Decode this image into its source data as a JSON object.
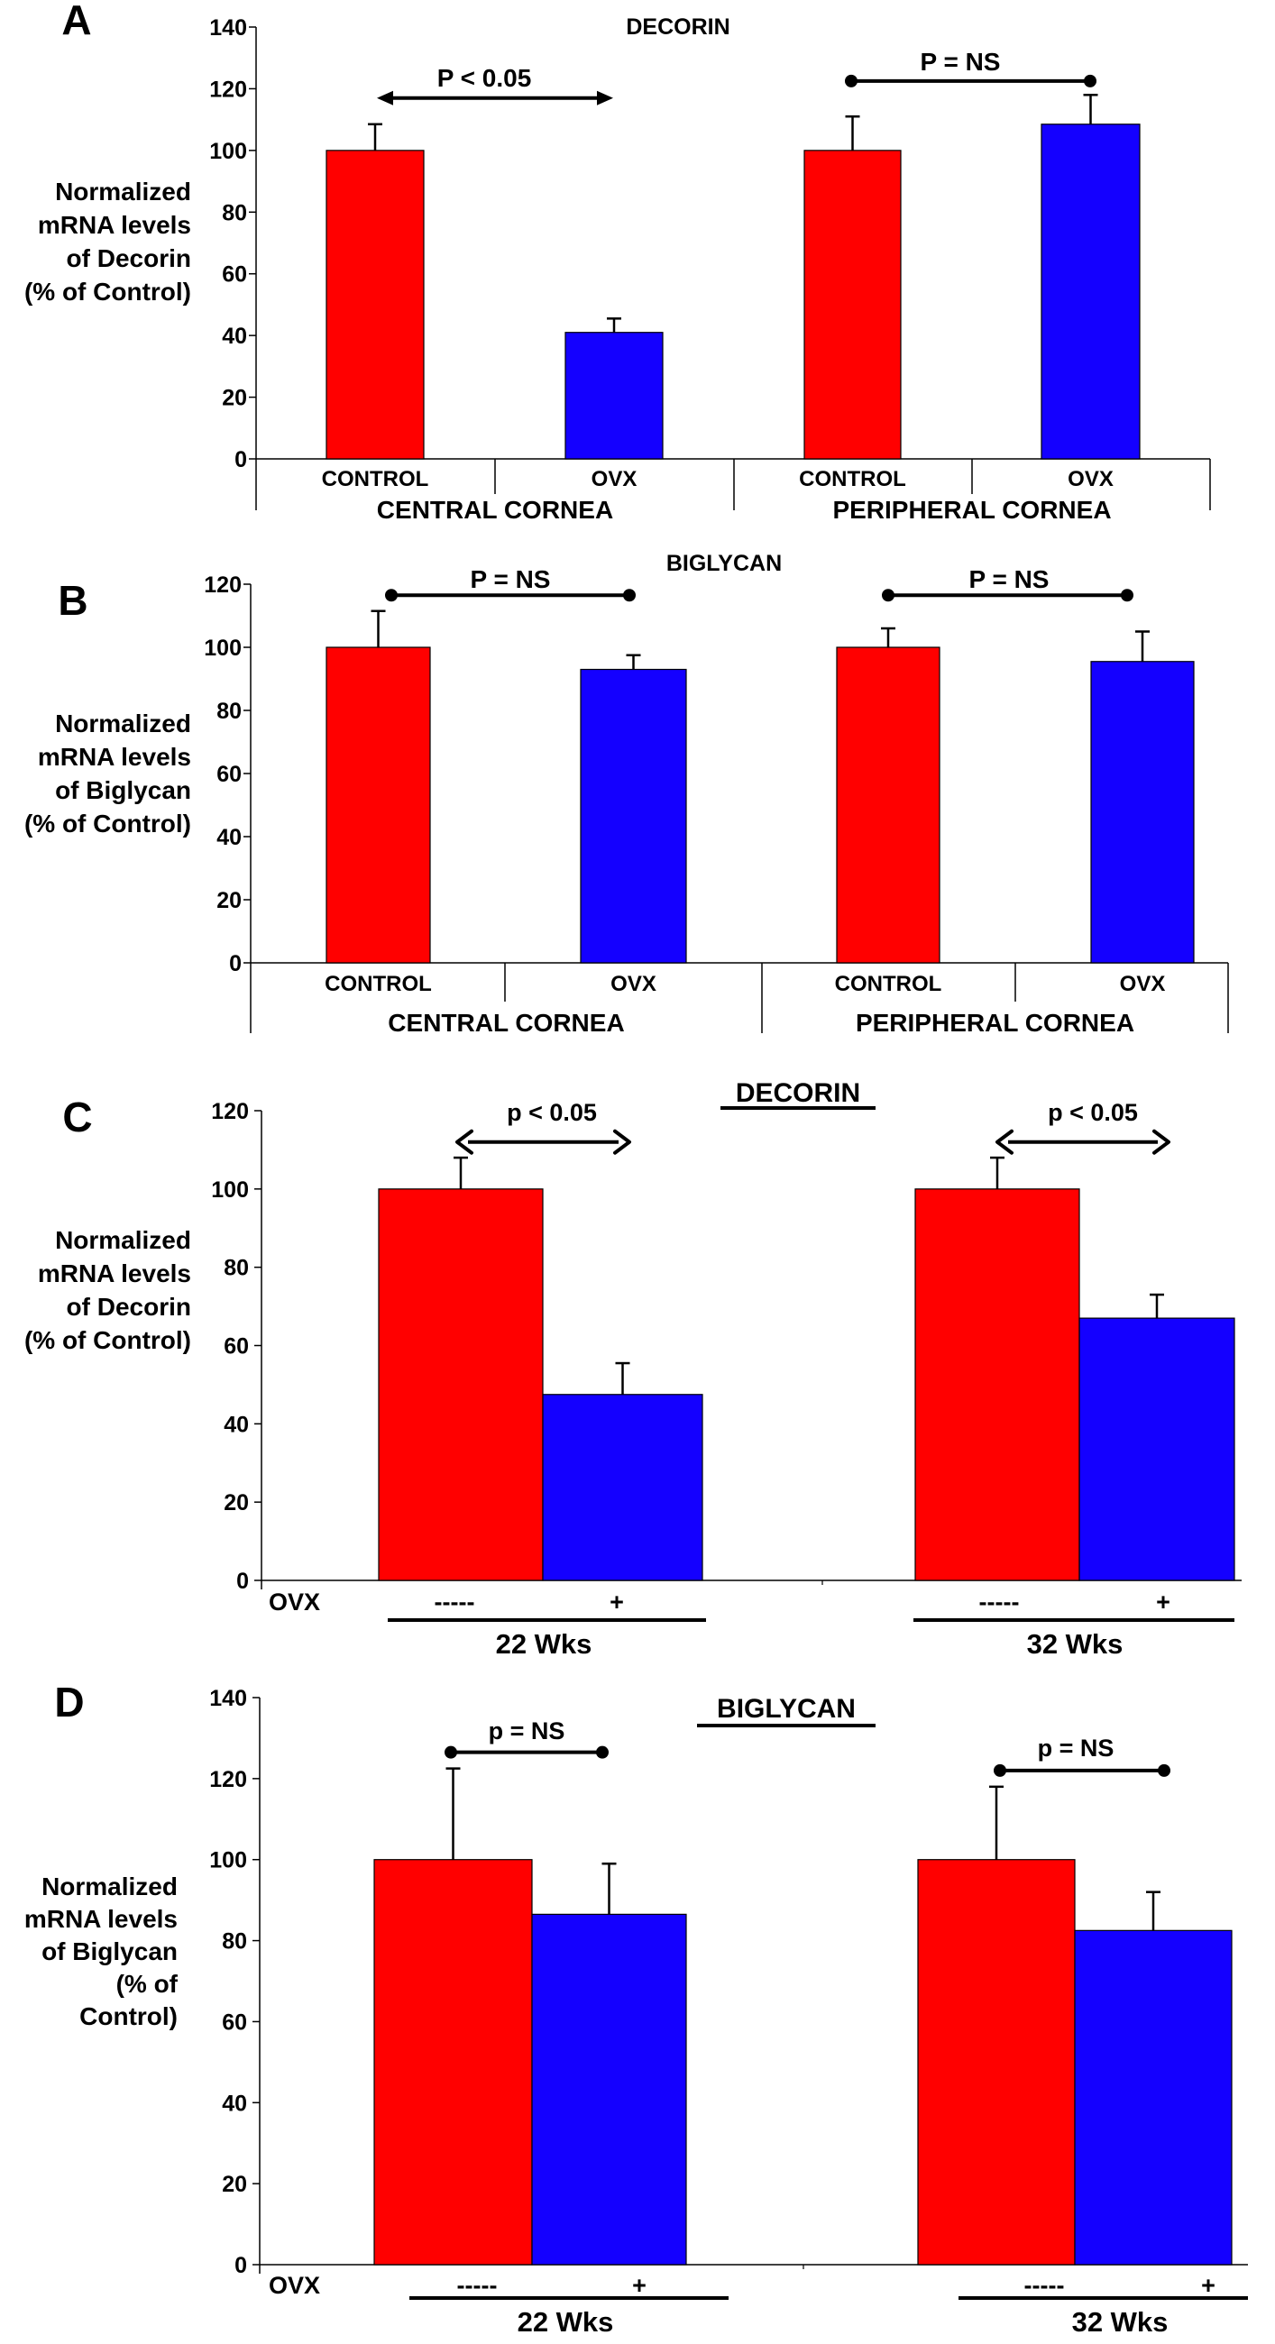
{
  "figure": {
    "colors": {
      "control": "#FF0000",
      "ovx": "#1400FF",
      "axis": "#000000"
    }
  },
  "chart_data": [
    {
      "panel": "A",
      "type": "bar",
      "title": "DECORIN",
      "title_underlined": false,
      "ylabel_lines": [
        "Normalized",
        "mRNA levels",
        "of Decorin",
        "(% of Control)"
      ],
      "ylim": [
        0,
        140
      ],
      "yticks": [
        0,
        20,
        40,
        60,
        80,
        100,
        120,
        140
      ],
      "grid": false,
      "groups": [
        {
          "label": "CENTRAL CORNEA",
          "bars": [
            {
              "category": "CONTROL",
              "series": "Control",
              "value": 100,
              "error": 8.5
            },
            {
              "category": "OVX",
              "series": "OVX",
              "value": 41,
              "error": 4.5
            }
          ],
          "significance": {
            "label": "P < 0.05",
            "style": "arrow",
            "y": 117
          }
        },
        {
          "label": "PERIPHERAL CORNEA",
          "bars": [
            {
              "category": "CONTROL",
              "series": "Control",
              "value": 100,
              "error": 11
            },
            {
              "category": "OVX",
              "series": "OVX",
              "value": 108.5,
              "error": 9.5
            }
          ],
          "significance": {
            "label": "P = NS",
            "style": "dots",
            "y": 122.5
          }
        }
      ]
    },
    {
      "panel": "B",
      "type": "bar",
      "title": "BIGLYCAN",
      "title_underlined": false,
      "ylabel_lines": [
        "Normalized",
        "mRNA levels",
        "of Biglycan",
        "(% of Control)"
      ],
      "ylim": [
        0,
        120
      ],
      "yticks": [
        0,
        20,
        40,
        60,
        80,
        100,
        120
      ],
      "grid": false,
      "groups": [
        {
          "label": "CENTRAL CORNEA",
          "bars": [
            {
              "category": "CONTROL",
              "series": "Control",
              "value": 100,
              "error": 11.5
            },
            {
              "category": "OVX",
              "series": "OVX",
              "value": 93,
              "error": 4.5
            }
          ],
          "significance": {
            "label": "P = NS",
            "style": "dots",
            "y": 116.5
          }
        },
        {
          "label": "PERIPHERAL CORNEA",
          "bars": [
            {
              "category": "CONTROL",
              "series": "Control",
              "value": 100,
              "error": 6
            },
            {
              "category": "OVX",
              "series": "OVX",
              "value": 95.5,
              "error": 9.5
            }
          ],
          "significance": {
            "label": "P = NS",
            "style": "dots",
            "y": 116.5
          }
        }
      ]
    },
    {
      "panel": "C",
      "type": "bar",
      "title": "DECORIN",
      "title_underlined": true,
      "ylabel_lines": [
        "Normalized",
        "mRNA levels",
        "of Decorin",
        "(% of Control)"
      ],
      "ylim": [
        0,
        120
      ],
      "yticks": [
        0,
        20,
        40,
        60,
        80,
        100,
        120
      ],
      "grid": false,
      "row_label": "OVX",
      "groups": [
        {
          "label": "22 Wks",
          "bars": [
            {
              "category": "-----",
              "series": "Control",
              "value": 100,
              "error": 8
            },
            {
              "category": "+",
              "series": "OVX",
              "value": 47.5,
              "error": 8
            }
          ],
          "significance": {
            "label": "p < 0.05",
            "style": "arrow",
            "y": 112
          }
        },
        {
          "label": "32 Wks",
          "bars": [
            {
              "category": "-----",
              "series": "Control",
              "value": 100,
              "error": 8
            },
            {
              "category": "+",
              "series": "OVX",
              "value": 67,
              "error": 6
            }
          ],
          "significance": {
            "label": "p < 0.05",
            "style": "arrow",
            "y": 112
          }
        }
      ]
    },
    {
      "panel": "D",
      "type": "bar",
      "title": "BIGLYCAN",
      "title_underlined": true,
      "ylabel_lines": [
        "Normalized",
        "mRNA levels",
        "of Biglycan",
        "(% of",
        "Control)"
      ],
      "ylim": [
        0,
        140
      ],
      "yticks": [
        0,
        20,
        40,
        60,
        80,
        100,
        120,
        140
      ],
      "grid": false,
      "row_label": "OVX",
      "groups": [
        {
          "label": "22 Wks",
          "bars": [
            {
              "category": "-----",
              "series": "Control",
              "value": 100,
              "error": 22.5
            },
            {
              "category": "+",
              "series": "OVX",
              "value": 86.5,
              "error": 12.5
            }
          ],
          "significance": {
            "label": "p = NS",
            "style": "dots",
            "y": 126.5
          }
        },
        {
          "label": "32 Wks",
          "bars": [
            {
              "category": "-----",
              "series": "Control",
              "value": 100,
              "error": 18
            },
            {
              "category": "+",
              "series": "OVX",
              "value": 82.5,
              "error": 9.5
            }
          ],
          "significance": {
            "label": "p = NS",
            "style": "dots",
            "y": 122
          }
        }
      ]
    }
  ]
}
